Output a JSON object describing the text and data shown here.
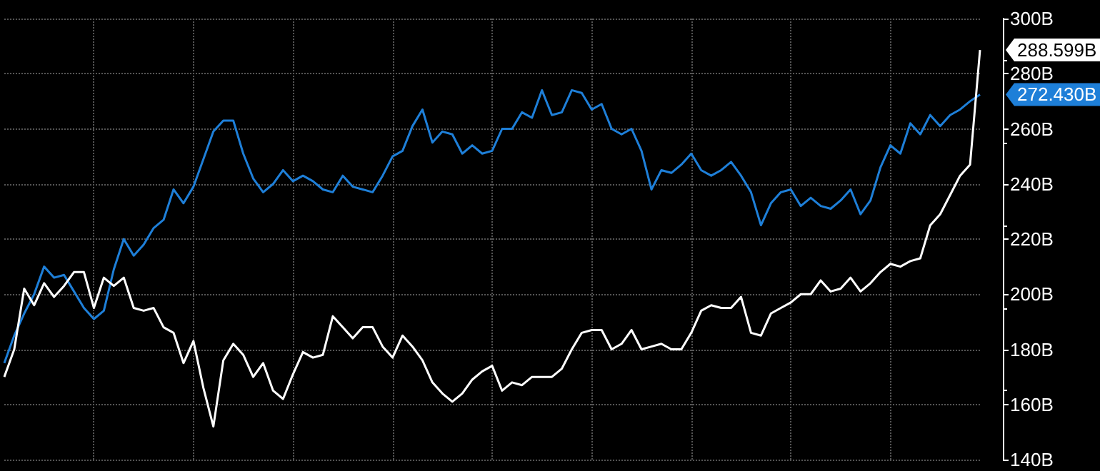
{
  "chart_data": {
    "type": "line",
    "categories": [
      null,
      null,
      null,
      null,
      null,
      null,
      null,
      null,
      null,
      null,
      null,
      null,
      null,
      null,
      null,
      null,
      null,
      null,
      null,
      null,
      null,
      null,
      null,
      null,
      null,
      null,
      null,
      null,
      null,
      null,
      null,
      null,
      null,
      null,
      null,
      null,
      null,
      null,
      null,
      null,
      null,
      null,
      null,
      null,
      null,
      null,
      null,
      null,
      null,
      null,
      null,
      null,
      null,
      null,
      null,
      null,
      null,
      null,
      null,
      null,
      null,
      null,
      null,
      null,
      null,
      null,
      null,
      null,
      null,
      null,
      null,
      null,
      null,
      null,
      null,
      null,
      null,
      null,
      null,
      null,
      null,
      null,
      null,
      null,
      null,
      null,
      null,
      null,
      null,
      null,
      null,
      null,
      null,
      null,
      null,
      null,
      null,
      null,
      null
    ],
    "series": [
      {
        "color": "#1e7fd8",
        "values": [
          175,
          185,
          193,
          200,
          210,
          206,
          207,
          201,
          195,
          191,
          194,
          209,
          220,
          214,
          218,
          224,
          227,
          238,
          233,
          239,
          249,
          259,
          263,
          263,
          251,
          242,
          237,
          240,
          245,
          241,
          243,
          241,
          238,
          237,
          243,
          239,
          238,
          237,
          243,
          250,
          252,
          261,
          267,
          255,
          259,
          258,
          251,
          254,
          251,
          252,
          260,
          260,
          266,
          264,
          274,
          265,
          266,
          274,
          273,
          267,
          269,
          260,
          258,
          260,
          252,
          238,
          245,
          244,
          247,
          251,
          245,
          243,
          245,
          248,
          243,
          237,
          225,
          233,
          237,
          238,
          232,
          235,
          232,
          231,
          234,
          238,
          229,
          234,
          246,
          254,
          251,
          262,
          258,
          265,
          261,
          265,
          267,
          270,
          272.43
        ]
      },
      {
        "color": "#ffffff",
        "values": [
          170,
          180,
          202,
          196,
          204,
          199,
          203,
          208,
          208,
          195,
          206,
          203,
          206,
          195,
          194,
          195,
          188,
          186,
          175,
          183,
          166,
          152,
          176,
          182,
          178,
          170,
          175,
          165,
          162,
          171,
          179,
          177,
          178,
          192,
          188,
          184,
          188,
          188,
          181,
          177,
          185,
          181,
          176,
          168,
          164,
          161,
          164,
          169,
          172,
          174,
          165,
          168,
          167,
          170,
          170,
          170,
          173,
          180,
          186,
          187,
          187,
          180,
          182,
          187,
          180,
          181,
          182,
          180,
          180,
          186,
          194,
          196,
          195,
          195,
          199,
          186,
          185,
          193,
          195,
          197,
          200,
          200,
          205,
          201,
          202,
          206,
          201,
          204,
          208,
          211,
          210,
          212,
          213,
          225,
          229,
          236,
          243,
          247,
          288.599
        ]
      }
    ],
    "ylim": [
      140,
      300
    ],
    "yticks": [
      {
        "value": 140,
        "label": "140B"
      },
      {
        "value": 160,
        "label": "160B"
      },
      {
        "value": 180,
        "label": "180B"
      },
      {
        "value": 200,
        "label": "200B"
      },
      {
        "value": 220,
        "label": "220B"
      },
      {
        "value": 240,
        "label": "240B"
      },
      {
        "value": 260,
        "label": "260B"
      },
      {
        "value": 280,
        "label": "280B"
      },
      {
        "value": 300,
        "label": "300B"
      }
    ],
    "annotations": [
      "288.599B",
      "272.430B"
    ],
    "grid": true,
    "marker": "none",
    "line_style": "solid"
  }
}
